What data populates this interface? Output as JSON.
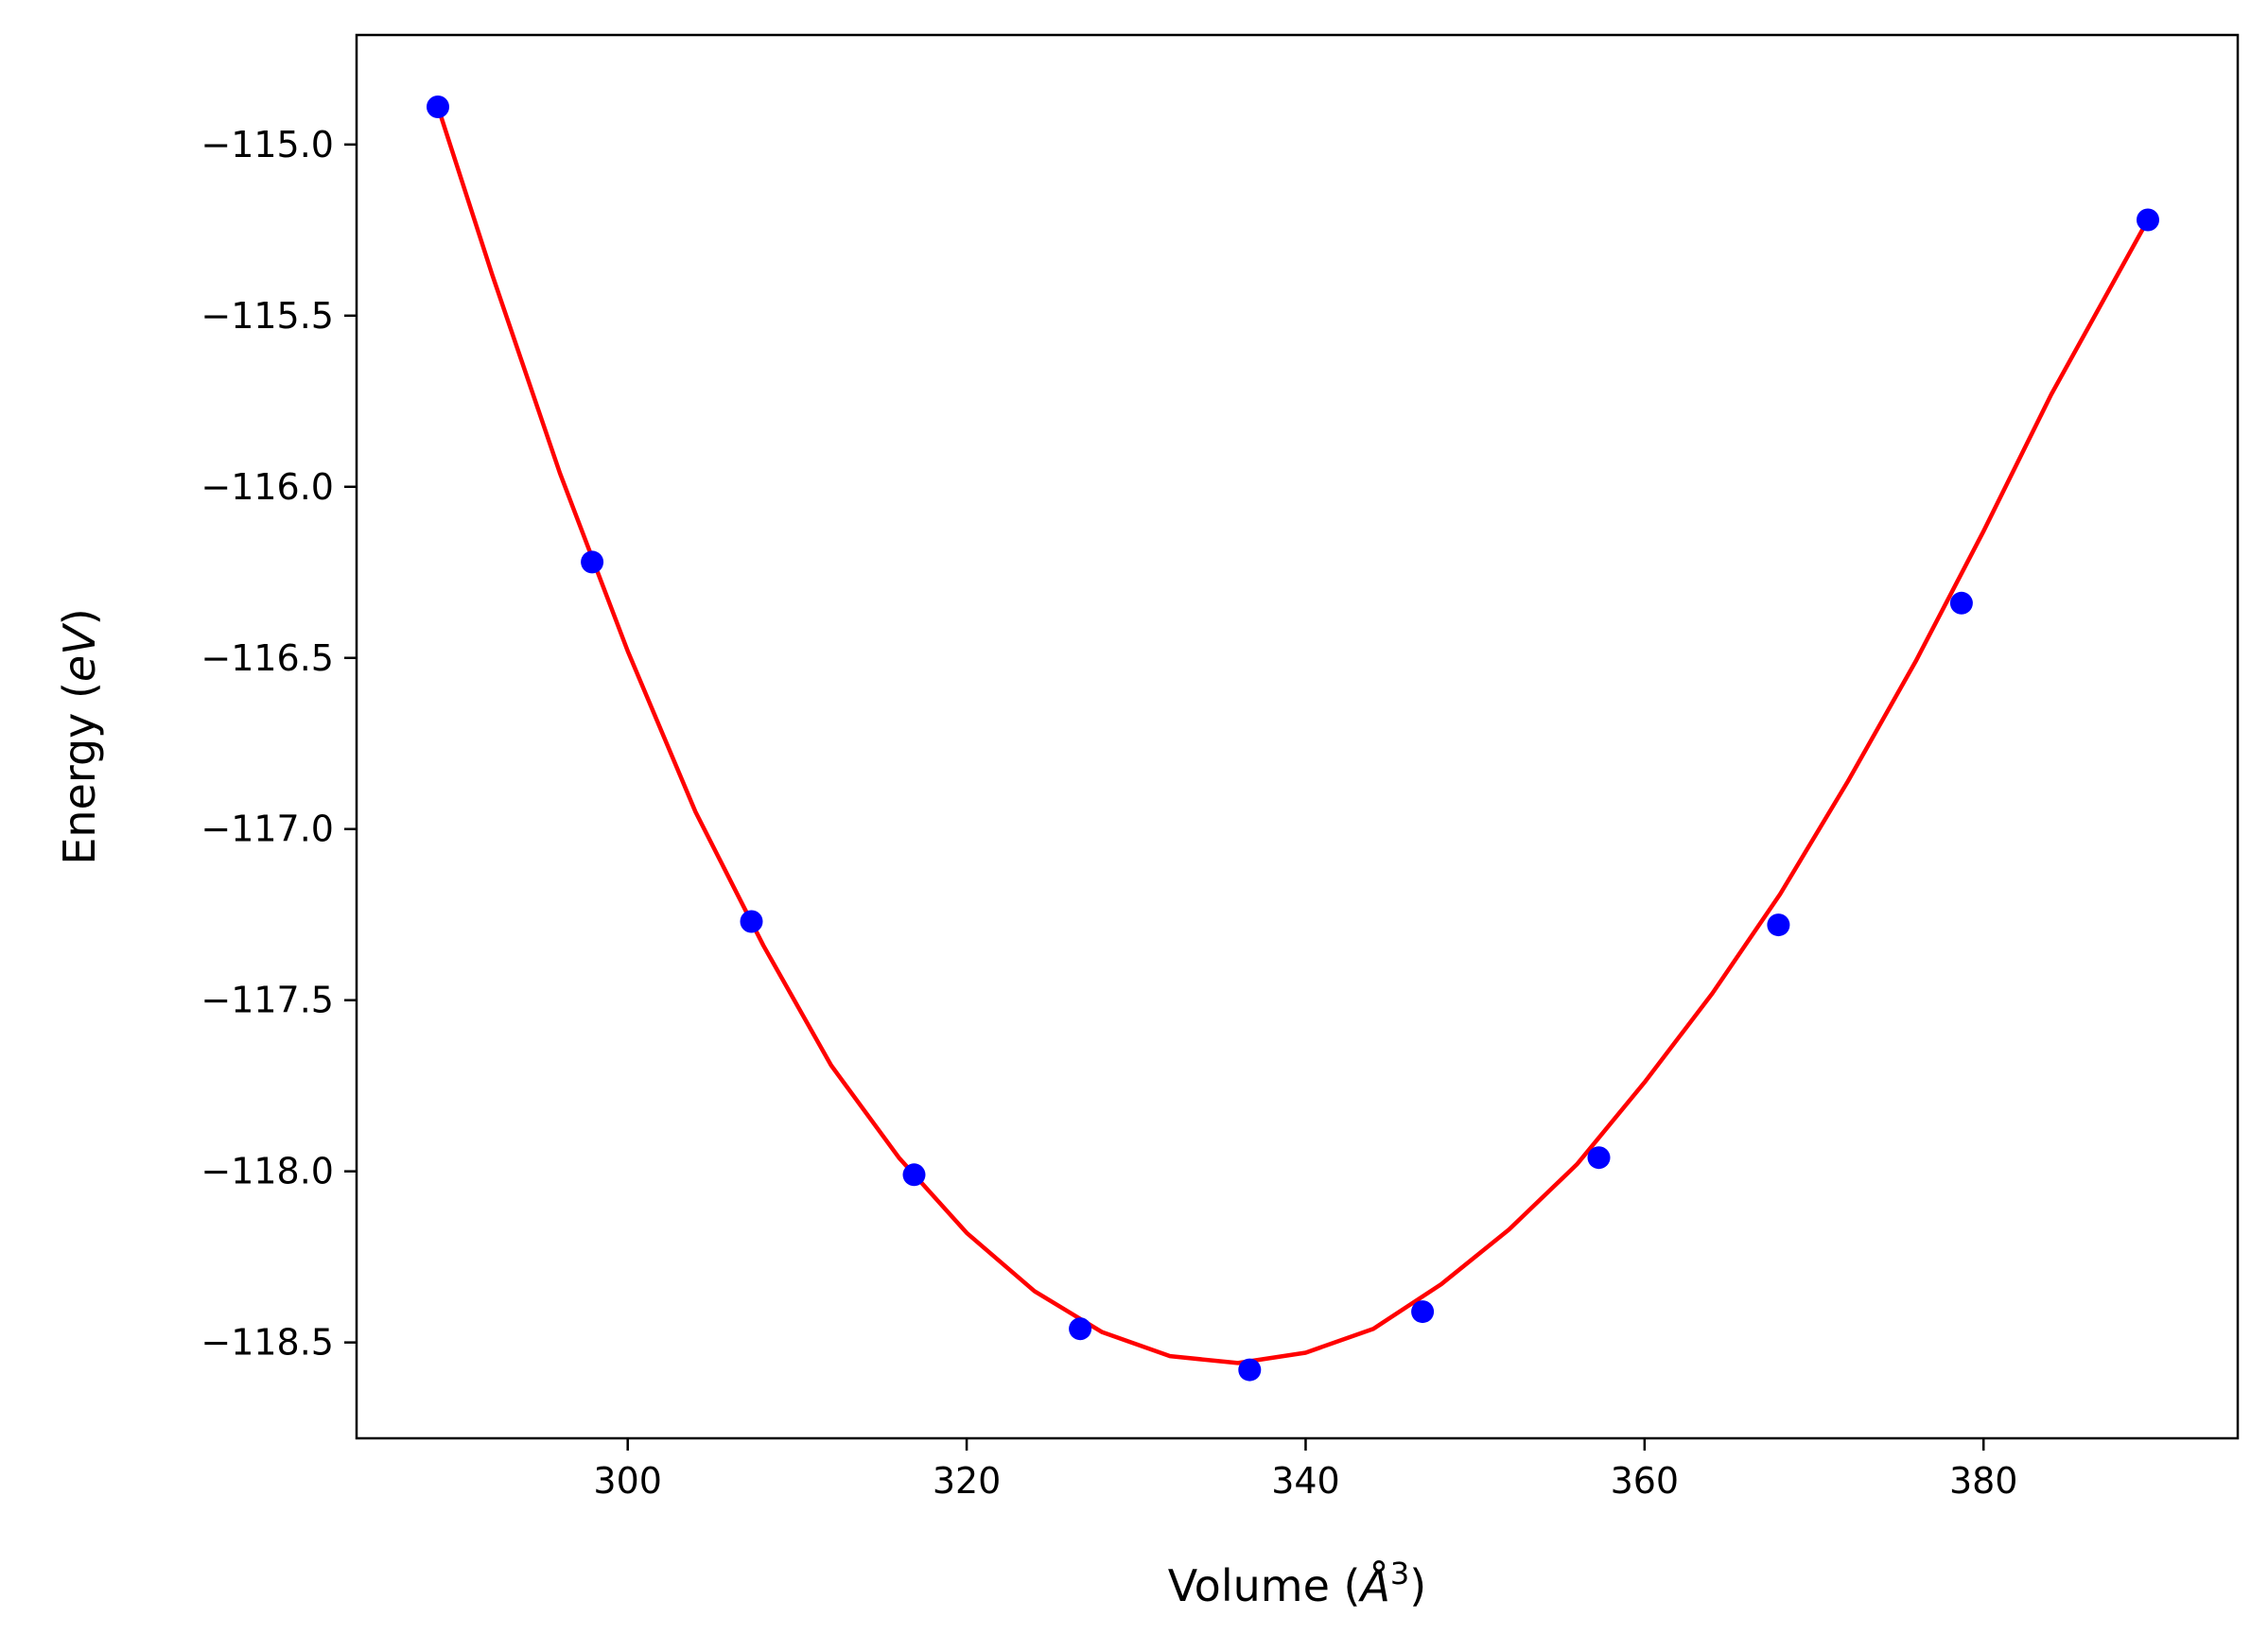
{
  "chart_data": {
    "type": "scatter",
    "title": "",
    "xlabel": "Volume ($\\AA^3$)",
    "xlabel_parts": {
      "prefix": "Volume (",
      "symbol": "Å",
      "superscript": "3",
      "suffix": ")"
    },
    "ylabel": "Energy ($eV$)",
    "ylabel_parts": {
      "prefix": "Energy (",
      "italic": "eV",
      "suffix": ")"
    },
    "xlim": [
      284.0,
      395.0
    ],
    "ylim": [
      -118.78,
      -114.68
    ],
    "xticks": [
      300,
      320,
      340,
      360,
      380
    ],
    "xtick_labels": [
      "300",
      "320",
      "340",
      "360",
      "380"
    ],
    "yticks": [
      -115.0,
      -115.5,
      -116.0,
      -116.5,
      -117.0,
      -117.5,
      -118.0,
      -118.5
    ],
    "ytick_labels": [
      "−115.0",
      "−115.5",
      "−116.0",
      "−116.5",
      "−117.0",
      "−117.5",
      "−118.0",
      "−118.5"
    ],
    "grid": false,
    "series": [
      {
        "kind": "points",
        "color": "#0000ff",
        "x": [
          288.8,
          297.9,
          307.3,
          316.9,
          326.7,
          336.7,
          346.9,
          357.3,
          367.9,
          378.7,
          389.7
        ],
        "y": [
          -114.89,
          -116.22,
          -117.27,
          -118.01,
          -118.46,
          -118.58,
          -118.41,
          -117.96,
          -117.28,
          -116.34,
          -115.22
        ]
      },
      {
        "kind": "fit-curve",
        "color": "#ff0000",
        "x": [
          288.8,
          292.0,
          296.0,
          300.0,
          304.0,
          308.0,
          312.0,
          316.0,
          320.0,
          324.0,
          328.0,
          332.0,
          336.0,
          340.0,
          344.0,
          348.0,
          352.0,
          356.0,
          360.0,
          364.0,
          368.0,
          372.0,
          376.0,
          380.0,
          384.0,
          389.7
        ],
        "y": [
          -114.89,
          -115.38,
          -115.96,
          -116.48,
          -116.95,
          -117.34,
          -117.69,
          -117.96,
          -118.18,
          -118.35,
          -118.47,
          -118.54,
          -118.56,
          -118.53,
          -118.46,
          -118.33,
          -118.17,
          -117.98,
          -117.74,
          -117.48,
          -117.19,
          -116.86,
          -116.51,
          -116.13,
          -115.73,
          -115.22
        ]
      }
    ]
  }
}
